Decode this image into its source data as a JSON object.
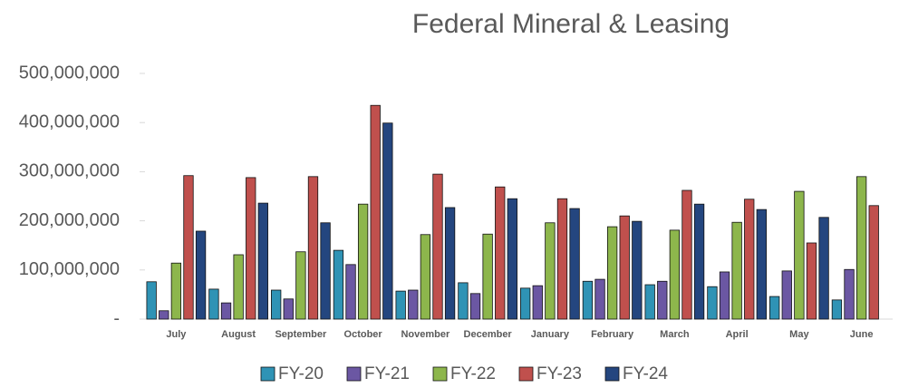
{
  "chart_data": {
    "type": "bar",
    "title": "Federal Mineral & Leasing",
    "categories": [
      "July",
      "August",
      "September",
      "October",
      "November",
      "December",
      "January",
      "February",
      "March",
      "April",
      "May",
      "June"
    ],
    "series": [
      {
        "name": "FY-20",
        "color": "#2f93b5",
        "values": [
          76000000,
          61000000,
          59000000,
          140000000,
          57000000,
          74000000,
          63000000,
          77000000,
          70000000,
          66000000,
          46000000,
          39000000
        ]
      },
      {
        "name": "FY-21",
        "color": "#6b57a3",
        "values": [
          17000000,
          33000000,
          41000000,
          111000000,
          59000000,
          52000000,
          68000000,
          81000000,
          77000000,
          96000000,
          98000000,
          101000000
        ]
      },
      {
        "name": "FY-22",
        "color": "#8db64c",
        "values": [
          114000000,
          131000000,
          137000000,
          234000000,
          172000000,
          173000000,
          196000000,
          188000000,
          181000000,
          197000000,
          260000000,
          290000000
        ]
      },
      {
        "name": "FY-23",
        "color": "#c0504d",
        "values": [
          292000000,
          288000000,
          290000000,
          435000000,
          295000000,
          269000000,
          245000000,
          210000000,
          262000000,
          244000000,
          155000000,
          231000000
        ]
      },
      {
        "name": "FY-24",
        "color": "#24467f",
        "values": [
          179000000,
          236000000,
          196000000,
          399000000,
          227000000,
          245000000,
          225000000,
          199000000,
          234000000,
          223000000,
          207000000,
          null
        ]
      }
    ],
    "ylim": [
      0,
      500000000
    ],
    "yticks": [
      {
        "value": 0,
        "label": "-"
      },
      {
        "value": 100000000,
        "label": "100,000,000"
      },
      {
        "value": 200000000,
        "label": "200,000,000"
      },
      {
        "value": 300000000,
        "label": "300,000,000"
      },
      {
        "value": 400000000,
        "label": "400,000,000"
      },
      {
        "value": 500000000,
        "label": "500,000,000"
      }
    ],
    "grid": false,
    "legend": "bottom"
  }
}
